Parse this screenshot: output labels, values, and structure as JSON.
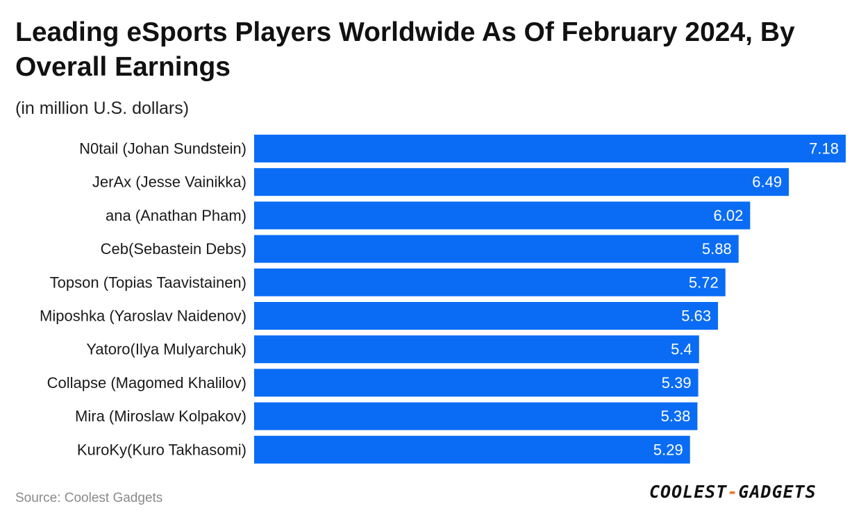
{
  "title": "Leading eSports Players Worldwide As Of February 2024, By Overall Earnings",
  "subtitle": "(in million U.S. dollars)",
  "source": "Source: Coolest Gadgets",
  "logo": {
    "left": "COOLEST",
    "dash": "-",
    "right": "GADGETS"
  },
  "colors": {
    "bar": "#0a6cf5",
    "value_text": "#ffffff",
    "category_text": "#1a1a1a"
  },
  "chart_data": {
    "type": "bar",
    "orientation": "horizontal",
    "categories": [
      "N0tail (Johan Sundstein)",
      "JerAx (Jesse Vainikka)",
      "ana (Anathan Pham)",
      "Ceb(Sebastein Debs)",
      "Topson (Topias Taavistainen)",
      "Miposhka (Yaroslav Naidenov)",
      "Yatoro(Ilya Mulyarchuk)",
      "Collapse (Magomed Khalilov)",
      "Mira (Miroslaw Kolpakov)",
      "KuroKy(Kuro Takhasomi)"
    ],
    "values": [
      7.18,
      6.49,
      6.02,
      5.88,
      5.72,
      5.63,
      5.4,
      5.39,
      5.38,
      5.29
    ],
    "value_labels": [
      "7.18",
      "6.49",
      "6.02",
      "5.88",
      "5.72",
      "5.63",
      "5.4",
      "5.39",
      "5.38",
      "5.29"
    ],
    "xlim": [
      0,
      7.18
    ],
    "grid": false,
    "legend": "none"
  }
}
